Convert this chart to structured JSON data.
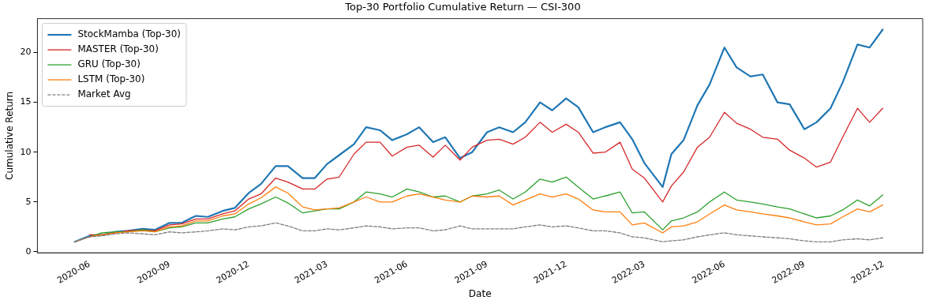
{
  "chart_data": {
    "type": "line",
    "title": "Top-30 Portfolio Cumulative Return — CSI-300",
    "xlabel": "Date",
    "ylabel": "Cumulative Return",
    "x": [
      "2020-05-15",
      "2020-06-01",
      "2020-06-15",
      "2020-07-01",
      "2020-07-15",
      "2020-08-01",
      "2020-08-15",
      "2020-09-01",
      "2020-09-15",
      "2020-10-01",
      "2020-10-15",
      "2020-11-01",
      "2020-11-15",
      "2020-12-01",
      "2020-12-15",
      "2021-01-01",
      "2021-01-15",
      "2021-02-01",
      "2021-02-15",
      "2021-03-01",
      "2021-03-15",
      "2021-04-01",
      "2021-04-15",
      "2021-05-01",
      "2021-05-15",
      "2021-06-01",
      "2021-06-15",
      "2021-07-01",
      "2021-07-15",
      "2021-08-01",
      "2021-08-15",
      "2021-09-01",
      "2021-09-15",
      "2021-10-01",
      "2021-10-15",
      "2021-11-01",
      "2021-11-15",
      "2021-12-01",
      "2021-12-15",
      "2022-01-01",
      "2022-01-15",
      "2022-02-01",
      "2022-02-15",
      "2022-03-01",
      "2022-03-22",
      "2022-04-01",
      "2022-04-15",
      "2022-05-01",
      "2022-05-15",
      "2022-06-01",
      "2022-06-15",
      "2022-07-01",
      "2022-07-15",
      "2022-08-01",
      "2022-08-15",
      "2022-09-01",
      "2022-09-15",
      "2022-10-01",
      "2022-10-15",
      "2022-11-01",
      "2022-11-15",
      "2022-11-30"
    ],
    "series": [
      {
        "name": "StockMamba (Top-30)",
        "color": "#1f77b4",
        "values": [
          1.0,
          1.6,
          1.7,
          2.0,
          2.1,
          2.3,
          2.2,
          2.9,
          2.9,
          3.6,
          3.5,
          4.1,
          4.4,
          5.9,
          6.8,
          8.6,
          8.6,
          7.4,
          7.4,
          8.8,
          9.7,
          10.8,
          12.5,
          12.2,
          11.2,
          11.8,
          12.5,
          11.0,
          11.5,
          9.4,
          10.0,
          12.0,
          12.5,
          12.0,
          13.0,
          15.0,
          14.2,
          15.4,
          14.5,
          12.0,
          12.5,
          13.0,
          11.3,
          8.9,
          6.5,
          9.8,
          11.2,
          14.7,
          16.8,
          20.5,
          18.5,
          17.6,
          17.8,
          15.0,
          14.8,
          12.3,
          13.0,
          14.4,
          17.0,
          20.8,
          20.5,
          22.3
        ]
      },
      {
        "name": "MASTER (Top-30)",
        "color": "#d62728",
        "values": [
          null,
          1.7,
          1.7,
          1.9,
          2.1,
          2.2,
          2.1,
          2.7,
          2.8,
          3.3,
          3.3,
          3.8,
          4.1,
          5.3,
          5.8,
          7.4,
          7.0,
          6.3,
          6.3,
          7.3,
          7.5,
          9.8,
          11.0,
          11.0,
          9.6,
          10.5,
          10.7,
          9.5,
          10.7,
          9.2,
          10.5,
          11.2,
          11.3,
          10.8,
          11.5,
          13.0,
          12.0,
          12.8,
          12.0,
          9.9,
          10.0,
          11.0,
          8.3,
          7.4,
          5.0,
          6.6,
          8.0,
          10.5,
          11.5,
          14.0,
          12.9,
          12.3,
          11.5,
          11.3,
          10.2,
          9.4,
          8.5,
          9.0,
          11.5,
          14.4,
          13.0,
          14.4
        ]
      },
      {
        "name": "GRU (Top-30)",
        "color": "#2ca02c",
        "values": [
          null,
          1.5,
          1.9,
          2.0,
          2.0,
          2.2,
          2.0,
          2.4,
          2.5,
          2.9,
          2.9,
          3.3,
          3.5,
          4.3,
          4.8,
          5.5,
          4.9,
          3.9,
          4.1,
          4.3,
          4.3,
          5.0,
          6.0,
          5.8,
          5.5,
          6.3,
          6.0,
          5.5,
          5.6,
          5.0,
          5.6,
          5.8,
          6.2,
          5.3,
          6.0,
          7.3,
          7.0,
          7.5,
          6.5,
          5.3,
          5.6,
          6.0,
          3.9,
          4.0,
          2.2,
          3.1,
          3.4,
          4.0,
          5.0,
          6.0,
          5.2,
          5.0,
          4.8,
          4.5,
          4.3,
          3.8,
          3.4,
          3.6,
          4.2,
          5.2,
          4.6,
          5.7
        ]
      },
      {
        "name": "LSTM (Top-30)",
        "color": "#ff7f0e",
        "values": [
          1.0,
          1.5,
          1.7,
          1.9,
          2.0,
          2.1,
          2.0,
          2.5,
          2.6,
          3.1,
          3.1,
          3.6,
          3.8,
          4.8,
          5.4,
          6.5,
          5.9,
          4.5,
          4.2,
          4.3,
          4.4,
          5.0,
          5.5,
          5.0,
          5.0,
          5.6,
          5.8,
          5.5,
          5.2,
          5.0,
          5.6,
          5.5,
          5.6,
          4.7,
          5.2,
          5.8,
          5.5,
          5.8,
          5.3,
          4.2,
          4.0,
          4.0,
          2.7,
          2.9,
          1.9,
          2.5,
          2.6,
          3.0,
          3.8,
          4.7,
          4.2,
          4.0,
          3.8,
          3.6,
          3.4,
          3.0,
          2.7,
          2.8,
          3.5,
          4.3,
          4.0,
          4.7
        ]
      },
      {
        "name": "Market Avg",
        "color": "#7f7f7f",
        "line_style": "dashed",
        "values": [
          1.0,
          1.5,
          1.6,
          1.8,
          1.9,
          1.8,
          1.7,
          2.0,
          1.9,
          2.0,
          2.1,
          2.3,
          2.2,
          2.5,
          2.6,
          2.9,
          2.6,
          2.1,
          2.1,
          2.3,
          2.2,
          2.4,
          2.6,
          2.5,
          2.3,
          2.4,
          2.4,
          2.1,
          2.2,
          2.6,
          2.3,
          2.3,
          2.3,
          2.3,
          2.5,
          2.7,
          2.5,
          2.6,
          2.4,
          2.1,
          2.1,
          1.9,
          1.5,
          1.4,
          1.0,
          1.1,
          1.2,
          1.5,
          1.7,
          1.9,
          1.7,
          1.6,
          1.5,
          1.4,
          1.3,
          1.1,
          1.0,
          1.0,
          1.2,
          1.3,
          1.2,
          1.4
        ]
      }
    ],
    "xlim": [
      "2020-04-02",
      "2023-01-15"
    ],
    "xticks": [
      "2020-06",
      "2020-09",
      "2020-12",
      "2021-03",
      "2021-06",
      "2021-09",
      "2021-12",
      "2022-03",
      "2022-06",
      "2022-09",
      "2022-12"
    ],
    "ylim": [
      -0.1,
      23.4
    ],
    "yticks": [
      0,
      5,
      10,
      15,
      20
    ],
    "grid": false,
    "legend": "top left",
    "line_style": "solid",
    "marker": "none"
  }
}
